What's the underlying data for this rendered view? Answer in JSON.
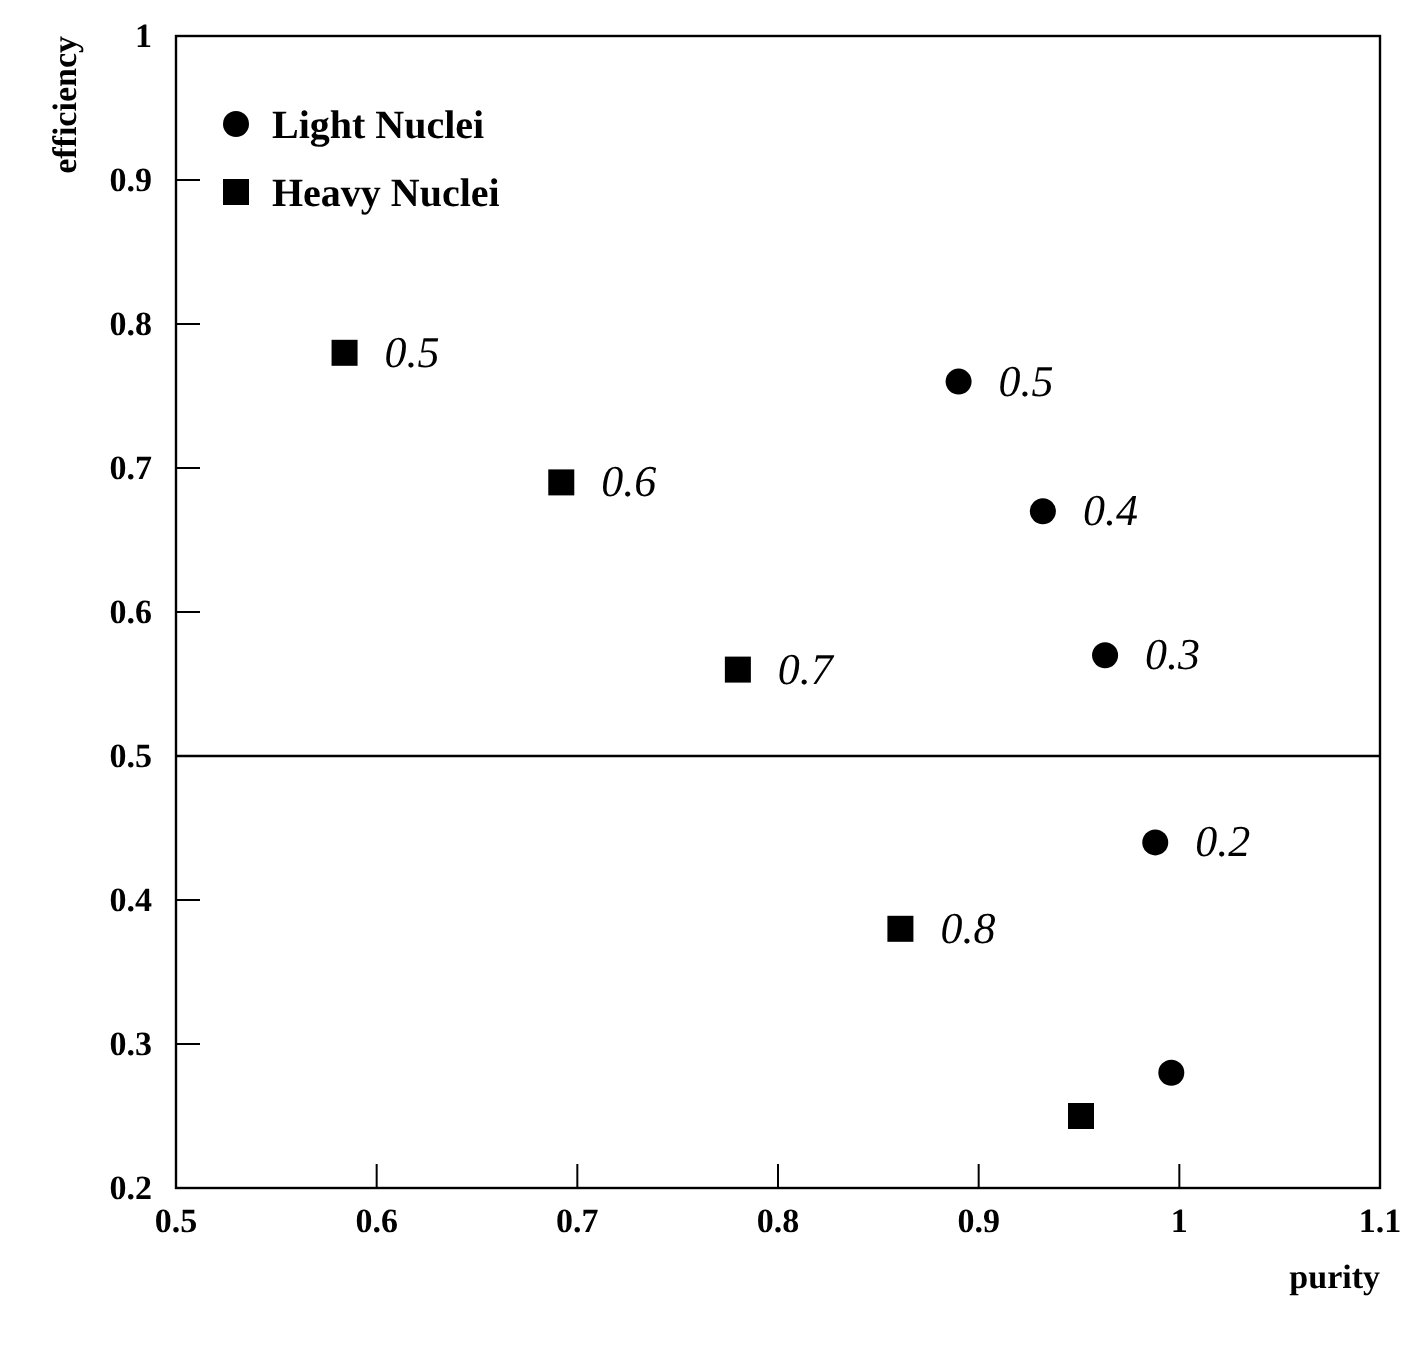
{
  "chart_data": {
    "type": "scatter",
    "xlabel": "purity",
    "ylabel": "efficiency",
    "xlim": [
      0.5,
      1.1
    ],
    "ylim": [
      0.2,
      1
    ],
    "xticks": [
      0.5,
      0.6,
      0.7,
      0.8,
      0.9,
      1,
      1.1
    ],
    "yticks": [
      0.2,
      0.3,
      0.4,
      0.5,
      0.6,
      0.7,
      0.8,
      0.9,
      1
    ],
    "legend": "top left",
    "series": [
      {
        "name": "Light Nuclei",
        "color": "#000000",
        "marker": "circle",
        "x": [
          0.89,
          0.932,
          0.963,
          0.988,
          0.996
        ],
        "values": [
          0.76,
          0.67,
          0.57,
          0.44,
          0.28
        ]
      },
      {
        "name": "Heavy Nuclei",
        "color": "#000000",
        "marker": "square",
        "x": [
          0.584,
          0.692,
          0.78,
          0.861,
          0.951
        ],
        "values": [
          0.78,
          0.69,
          0.56,
          0.38,
          0.25
        ]
      }
    ],
    "ref_lines": [
      {
        "axis": "y",
        "value": 0.5,
        "color": "#000000"
      }
    ],
    "annotations": [
      {
        "text": "0.5",
        "x": 0.89,
        "y": 0.76
      },
      {
        "text": "0.4",
        "x": 0.932,
        "y": 0.67
      },
      {
        "text": "0.3",
        "x": 0.963,
        "y": 0.57
      },
      {
        "text": "0.2",
        "x": 0.988,
        "y": 0.44
      },
      {
        "text": "0.5",
        "x": 0.584,
        "y": 0.78
      },
      {
        "text": "0.6",
        "x": 0.692,
        "y": 0.69
      },
      {
        "text": "0.7",
        "x": 0.78,
        "y": 0.56
      },
      {
        "text": "0.8",
        "x": 0.861,
        "y": 0.38
      }
    ]
  }
}
